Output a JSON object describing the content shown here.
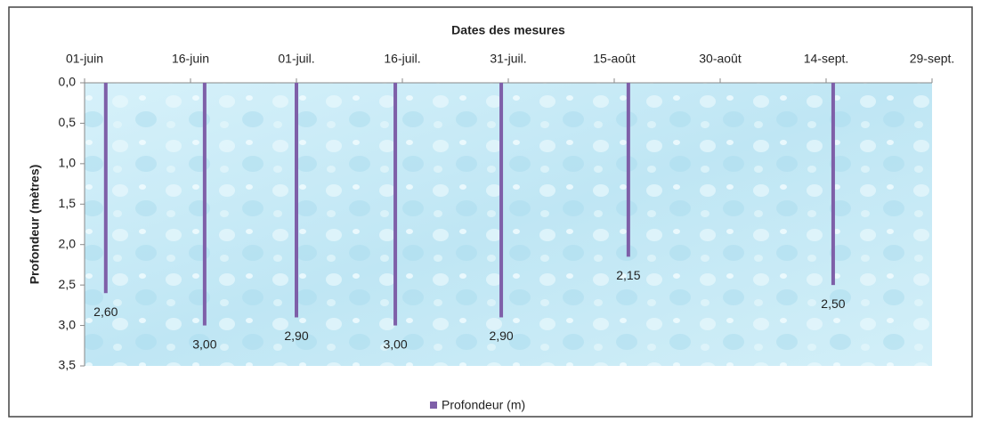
{
  "chart_data": {
    "type": "bar",
    "title": "Dates des mesures",
    "y_label": "Profondeur (mètres)",
    "x": [
      155,
      169,
      182,
      196,
      211,
      229,
      258
    ],
    "series": [
      {
        "name": "Profondeur (m)",
        "color": "#7e5fa8",
        "values": [
          2.6,
          3.0,
          2.9,
          3.0,
          2.9,
          2.15,
          2.5
        ],
        "value_labels": [
          "2,60",
          "3,00",
          "2,90",
          "3,00",
          "2,90",
          "2,15",
          "2,50"
        ]
      }
    ],
    "xlim": [
      152,
      272
    ],
    "xticks": [
      {
        "value": 152,
        "label": "01-juin"
      },
      {
        "value": 167,
        "label": "16-juin"
      },
      {
        "value": 182,
        "label": "01-juil."
      },
      {
        "value": 197,
        "label": "16-juil."
      },
      {
        "value": 212,
        "label": "31-juil."
      },
      {
        "value": 227,
        "label": "15-août"
      },
      {
        "value": 242,
        "label": "30-août"
      },
      {
        "value": 257,
        "label": "14-sept."
      },
      {
        "value": 272,
        "label": "29-sept."
      }
    ],
    "ylim": [
      0,
      3.5
    ],
    "y_inverted": true,
    "yticks": [
      {
        "value": 0,
        "label": "0,0"
      },
      {
        "value": 0.5,
        "label": "0,5"
      },
      {
        "value": 1,
        "label": "1,0"
      },
      {
        "value": 1.5,
        "label": "1,5"
      },
      {
        "value": 2,
        "label": "2,0"
      },
      {
        "value": 2.5,
        "label": "2,5"
      },
      {
        "value": 3,
        "label": "3,0"
      },
      {
        "value": 3.5,
        "label": "3,5"
      }
    ],
    "x_axis_position": "top",
    "legend": "bottom"
  }
}
